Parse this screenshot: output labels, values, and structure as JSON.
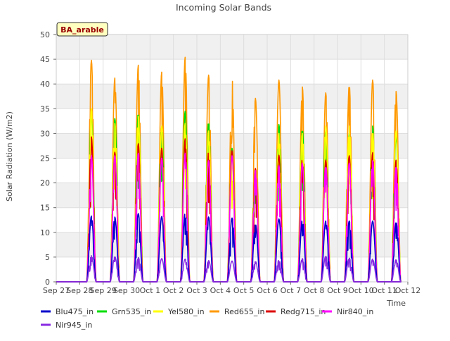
{
  "chart_data": {
    "type": "line",
    "title": "Incoming Solar Bands",
    "ylabel": "Solar Radiation (W/m2)",
    "xlabel": "Time",
    "ylim": [
      0,
      50
    ],
    "yticks": [
      0,
      5,
      10,
      15,
      20,
      25,
      30,
      35,
      40,
      45,
      50
    ],
    "xticks": [
      "Sep 27",
      "Sep 28",
      "Sep 29",
      "Sep 30",
      "Oct 1",
      "Oct 2",
      "Oct 3",
      "Oct 4",
      "Oct 5",
      "Oct 6",
      "Oct 7",
      "Oct 8",
      "Oct 9",
      "Oct 10",
      "Oct 11",
      "Oct 12"
    ],
    "days": [
      "Sep 28",
      "Sep 29",
      "Sep 30",
      "Oct 1",
      "Oct 2",
      "Oct 3",
      "Oct 4",
      "Oct 5",
      "Oct 6",
      "Oct 7",
      "Oct 8",
      "Oct 9",
      "Oct 10",
      "Oct 11"
    ],
    "grid": "horizontal bands",
    "legend_position": "bottom",
    "annotation": "BA_arable",
    "series": [
      {
        "name": "Blu475_in",
        "color": "#0000cc",
        "daily_peak": [
          13.3,
          13.1,
          13.8,
          13.2,
          13.9,
          13.1,
          12.9,
          11.7,
          12.7,
          12.5,
          12.3,
          12.3,
          12.3,
          12.1
        ]
      },
      {
        "name": "Grn535_in",
        "color": "#00dd00",
        "daily_peak": [
          33.7,
          33.0,
          34.3,
          32.5,
          34.5,
          32.5,
          27.0,
          22.0,
          31.8,
          31.0,
          30.5,
          30.0,
          31.5,
          29.5
        ]
      },
      {
        "name": "Yel580_in",
        "color": "#ffff00",
        "daily_peak": [
          35.0,
          32.0,
          33.5,
          31.5,
          32.0,
          30.5,
          25.0,
          20.0,
          30.0,
          30.0,
          31.5,
          31.5,
          30.5,
          30.5
        ]
      },
      {
        "name": "Red655_in",
        "color": "#ff9900",
        "daily_peak": [
          44.8,
          41.2,
          43.8,
          42.4,
          45.4,
          41.8,
          41.3,
          37.1,
          40.8,
          39.4,
          38.2,
          40.0,
          40.8,
          38.5
        ]
      },
      {
        "name": "Redg715_in",
        "color": "#dd0000",
        "daily_peak": [
          29.3,
          26.2,
          27.9,
          27.0,
          28.9,
          26.5,
          26.5,
          22.9,
          25.6,
          25.0,
          24.6,
          25.5,
          26.1,
          24.6
        ]
      },
      {
        "name": "Nir840_in",
        "color": "#ff00ff",
        "daily_peak": [
          25.5,
          25.5,
          26.0,
          25.0,
          26.0,
          24.5,
          25.5,
          22.5,
          23.5,
          24.0,
          23.5,
          24.0,
          24.5,
          23.5
        ]
      },
      {
        "name": "Nir945_in",
        "color": "#8a2be2",
        "daily_peak": [
          5.3,
          5.1,
          4.9,
          4.7,
          4.6,
          4.3,
          4.2,
          4.1,
          4.4,
          4.7,
          5.2,
          4.8,
          4.6,
          4.5
        ]
      }
    ]
  }
}
